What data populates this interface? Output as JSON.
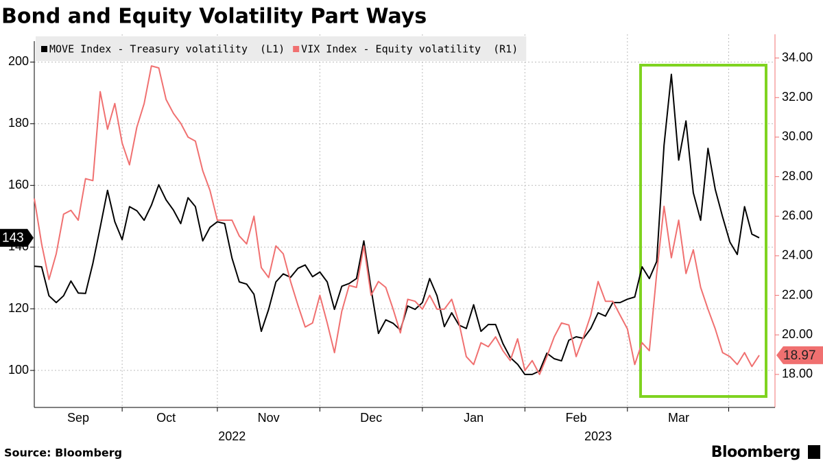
{
  "chart_data": {
    "type": "line",
    "title": "Bond and Equity Volatility Part Ways",
    "source": "Source: Bloomberg",
    "brand": "Bloomberg",
    "categories": [
      null,
      null,
      null,
      null,
      null,
      null,
      "Sep",
      null,
      null,
      null,
      null,
      null,
      null,
      null,
      null,
      null,
      null,
      null,
      "Oct",
      null,
      null,
      null,
      null,
      null,
      null,
      null,
      null,
      null,
      null,
      null,
      null,
      null,
      "Nov",
      null,
      null,
      null,
      null,
      null,
      null,
      null,
      null,
      null,
      null,
      null,
      null,
      null,
      "Dec",
      null,
      null,
      null,
      null,
      null,
      null,
      null,
      null,
      null,
      null,
      null,
      null,
      null,
      "Jan",
      null,
      null,
      null,
      null,
      null,
      null,
      null,
      null,
      null,
      null,
      null,
      null,
      null,
      "Feb",
      null,
      null,
      null,
      null,
      null,
      null,
      null,
      null,
      null,
      null,
      null,
      null,
      null,
      "Mar",
      null,
      null,
      null,
      null,
      null,
      null,
      null,
      null,
      null,
      null,
      null
    ],
    "categories_year": [
      null,
      null,
      null,
      null,
      null,
      null,
      null,
      null,
      null,
      null,
      null,
      null,
      null,
      null,
      null,
      null,
      null,
      null,
      null,
      null,
      null,
      null,
      null,
      null,
      null,
      null,
      null,
      "2022",
      null,
      null,
      null,
      null,
      null,
      null,
      null,
      null,
      null,
      null,
      null,
      null,
      null,
      null,
      null,
      null,
      null,
      null,
      null,
      null,
      null,
      null,
      null,
      null,
      null,
      null,
      null,
      null,
      null,
      null,
      null,
      null,
      null,
      null,
      null,
      null,
      null,
      null,
      null,
      null,
      null,
      null,
      null,
      null,
      null,
      null,
      null,
      null,
      null,
      "2023",
      null,
      null,
      null,
      null,
      null,
      null,
      null,
      null,
      null,
      null,
      null,
      null,
      null,
      null,
      null,
      null,
      null,
      null,
      null,
      null,
      null,
      null
    ],
    "series": [
      {
        "name": "MOVE Index - Treasury volatility  (L1)",
        "color": "#000000",
        "values": [
          133.8,
          133.6,
          124.2,
          122,
          124.2,
          129,
          125.1,
          125,
          134.7,
          146.4,
          158.4,
          148.2,
          142.4,
          153.1,
          151.8,
          148.7,
          153.6,
          160.2,
          155.3,
          152,
          147.6,
          156,
          153.1,
          142,
          146.4,
          148.2,
          147.6,
          136.4,
          128.7,
          128,
          124.7,
          112.7,
          119.8,
          128.7,
          131.3,
          130.2,
          133.1,
          134.2,
          130.4,
          131.9,
          128.7,
          119.8,
          127.3,
          128.2,
          129.8,
          142,
          126.4,
          112,
          116.4,
          115.3,
          113.1,
          120.9,
          119.8,
          122,
          129.8,
          124.2,
          114.2,
          118.7,
          114.7,
          113.6,
          121.3,
          112.7,
          114.9,
          114.9,
          108.7,
          104.2,
          102,
          98.7,
          98.7,
          99.8,
          105.6,
          103.8,
          103.1,
          109.8,
          110.9,
          110.4,
          113.6,
          118.7,
          117.6,
          122,
          122,
          123.1,
          123.8,
          133.6,
          129.8,
          135.3,
          173,
          196,
          168.2,
          180.9,
          157.6,
          148.7,
          172,
          158.7,
          149.8,
          141.6,
          137.6,
          153.1,
          144.2,
          143
        ]
      },
      {
        "name": "VIX Index - Equity volatility  (R1)",
        "color": "#f07070",
        "axis": "y2",
        "values": [
          26.9,
          24.6,
          22.8,
          24.1,
          26.1,
          26.3,
          25.8,
          27.9,
          27.8,
          32.3,
          30.4,
          31.7,
          29.7,
          28.6,
          30.5,
          31.7,
          33.6,
          33.5,
          31.9,
          31.2,
          30.7,
          30,
          29.8,
          28.3,
          27.3,
          25.8,
          25.8,
          25.8,
          25,
          24.6,
          26,
          23.4,
          22.9,
          24.5,
          24.1,
          22.7,
          21.5,
          20.4,
          20.6,
          22,
          20.6,
          19.1,
          21.2,
          22.5,
          22.4,
          24.5,
          22,
          22.7,
          22.4,
          21.3,
          20.1,
          21.8,
          21.7,
          21.3,
          22,
          21.3,
          21.3,
          21.8,
          20.6,
          18.9,
          18.5,
          19.6,
          19.4,
          19.9,
          19.2,
          18.7,
          19.8,
          18.2,
          18.7,
          18,
          18.9,
          19.9,
          20.6,
          20.5,
          18.9,
          19.9,
          21,
          22.7,
          21.7,
          21.7,
          21,
          20.3,
          18.5,
          19.6,
          19.2,
          23.1,
          26.5,
          23.9,
          25.8,
          23.1,
          24.3,
          22.4,
          21.3,
          20.3,
          19.1,
          18.9,
          18.5,
          19.1,
          18.4,
          18.97
        ]
      }
    ],
    "ylim": [
      88,
      209
    ],
    "yticks": [
      100,
      120,
      140,
      160,
      180,
      200
    ],
    "y2lim": [
      16.33,
      35.2
    ],
    "y2ticks": [
      {
        "value": 18,
        "label": "18.00"
      },
      {
        "value": 20,
        "label": "20.00"
      },
      {
        "value": 22,
        "label": "22.00"
      },
      {
        "value": 24,
        "label": "24.00"
      },
      {
        "value": 26,
        "label": "26.00"
      },
      {
        "value": 28,
        "label": "28.00"
      },
      {
        "value": 30,
        "label": "30.00"
      },
      {
        "value": 32,
        "label": "32.00"
      },
      {
        "value": 34,
        "label": "34.00"
      }
    ],
    "grid": true,
    "legend": "top-left"
  }
}
